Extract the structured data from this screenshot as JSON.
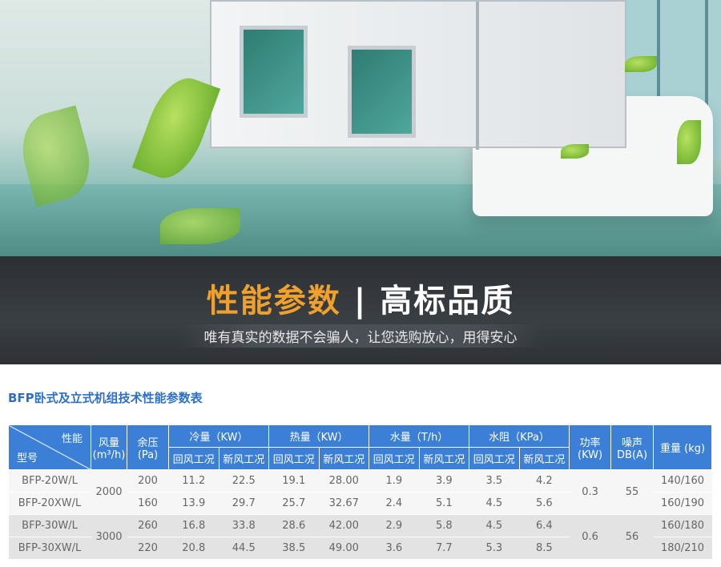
{
  "banner": {
    "title_accent": "性能参数",
    "separator": "|",
    "title_rest": "高标品质",
    "subtitle": "唯有真实的数据不会骗人，让您选购放心，用得安心"
  },
  "table": {
    "title": "BFP卧式及立式机组技术性能参数表",
    "header": {
      "performance": "性能",
      "model": "型号",
      "airflow": "风量",
      "airflow_unit": "(m³/h)",
      "pressure": "余压",
      "pressure_unit": "(Pa)",
      "cooling": "冷量（KW）",
      "heating": "热量（KW）",
      "water": "水量（T/h）",
      "resistance": "水阻（KPa）",
      "power": "功率",
      "power_unit": "(KW)",
      "noise": "噪声",
      "noise_unit": "DB(A)",
      "weight": "重量 (kg)",
      "return_air": "回风工况",
      "fresh_air": "新风工况"
    },
    "groups": [
      {
        "airflow": "2000",
        "power": "0.3",
        "noise": "55",
        "rows": [
          {
            "model": "BFP-20W/L",
            "pressure": "200",
            "cool_r": "11.2",
            "cool_f": "22.5",
            "heat_r": "19.1",
            "heat_f": "28.00",
            "water_r": "1.9",
            "water_f": "3.9",
            "res_r": "3.5",
            "res_f": "4.2",
            "weight": "140/160"
          },
          {
            "model": "BFP-20XW/L",
            "pressure": "160",
            "cool_r": "13.9",
            "cool_f": "29.7",
            "heat_r": "25.7",
            "heat_f": "32.67",
            "water_r": "2.4",
            "water_f": "5.1",
            "res_r": "4.5",
            "res_f": "5.6",
            "weight": "160/190"
          }
        ]
      },
      {
        "airflow": "3000",
        "power": "0.6",
        "noise": "56",
        "rows": [
          {
            "model": "BFP-30W/L",
            "pressure": "260",
            "cool_r": "16.8",
            "cool_f": "33.8",
            "heat_r": "28.6",
            "heat_f": "42.00",
            "water_r": "2.9",
            "water_f": "5.8",
            "res_r": "4.5",
            "res_f": "6.4",
            "weight": "160/180"
          },
          {
            "model": "BFP-30XW/L",
            "pressure": "220",
            "cool_r": "20.8",
            "cool_f": "44.5",
            "heat_r": "38.5",
            "heat_f": "49.00",
            "water_r": "3.6",
            "water_f": "7.7",
            "res_r": "5.3",
            "res_f": "8.5",
            "weight": "180/210"
          }
        ]
      }
    ]
  },
  "colors": {
    "header": "#3b7fd6",
    "accent": "#f0a02c",
    "title": "#2d6fc8"
  }
}
